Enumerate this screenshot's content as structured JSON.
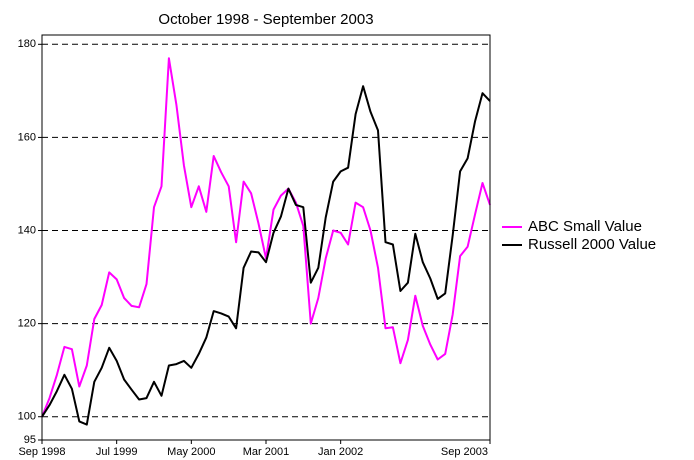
{
  "chart_data": {
    "type": "line",
    "title": "October 1998 - September 2003",
    "categories": [
      "Sep 1998",
      null,
      null,
      null,
      null,
      null,
      null,
      null,
      null,
      null,
      "Jul 1999",
      null,
      null,
      null,
      null,
      null,
      null,
      null,
      null,
      null,
      "May 2000",
      null,
      null,
      null,
      null,
      null,
      null,
      null,
      null,
      null,
      "Mar 2001",
      null,
      null,
      null,
      null,
      null,
      null,
      null,
      null,
      null,
      "Jan 2002",
      null,
      null,
      null,
      null,
      null,
      null,
      null,
      null,
      null,
      null,
      null,
      null,
      null,
      null,
      null,
      null,
      null,
      null,
      null,
      "Sep 2003"
    ],
    "series": [
      {
        "name": "ABC Small Value",
        "color": "#ff00ff",
        "values": [
          100,
          104,
          109,
          115,
          114.5,
          106.5,
          111,
          121,
          124,
          131,
          129.5,
          125.5,
          123.8,
          123.5,
          128.5,
          145,
          149.5,
          177,
          167,
          154,
          145,
          149.5,
          144,
          156,
          152.5,
          149.5,
          137.5,
          150.5,
          148,
          141.5,
          134,
          144.5,
          147.5,
          149,
          146,
          141,
          120,
          125.5,
          134,
          140,
          139.5,
          137,
          146,
          145,
          140,
          132,
          119,
          119.2,
          111.5,
          116.5,
          126,
          119.5,
          115.5,
          112.3,
          113.5,
          122,
          134.5,
          136.5,
          143.5,
          150.2,
          145.5
        ]
      },
      {
        "name": "Russell 2000 Value",
        "color": "#000000",
        "values": [
          100,
          102.5,
          105.5,
          109,
          106,
          99,
          98.3,
          107.5,
          110.5,
          114.8,
          112,
          108,
          105.8,
          103.7,
          104,
          107.5,
          104.5,
          111,
          111.3,
          112,
          110.5,
          113.5,
          117,
          122.7,
          122.2,
          121.5,
          119,
          132,
          135.5,
          135.3,
          133.2,
          139.5,
          143,
          149,
          145.5,
          145,
          128.8,
          132,
          142.8,
          150.5,
          152.7,
          153.5,
          165,
          171,
          165.5,
          161.5,
          137.5,
          137,
          127,
          128.8,
          139.3,
          133.2,
          129.7,
          125.3,
          126.5,
          139,
          152.7,
          155.5,
          163.5,
          169.5,
          167.8
        ]
      }
    ],
    "ylim": [
      95,
      182
    ],
    "yticks": [
      95,
      100,
      120,
      140,
      160,
      180
    ],
    "grid": true
  }
}
